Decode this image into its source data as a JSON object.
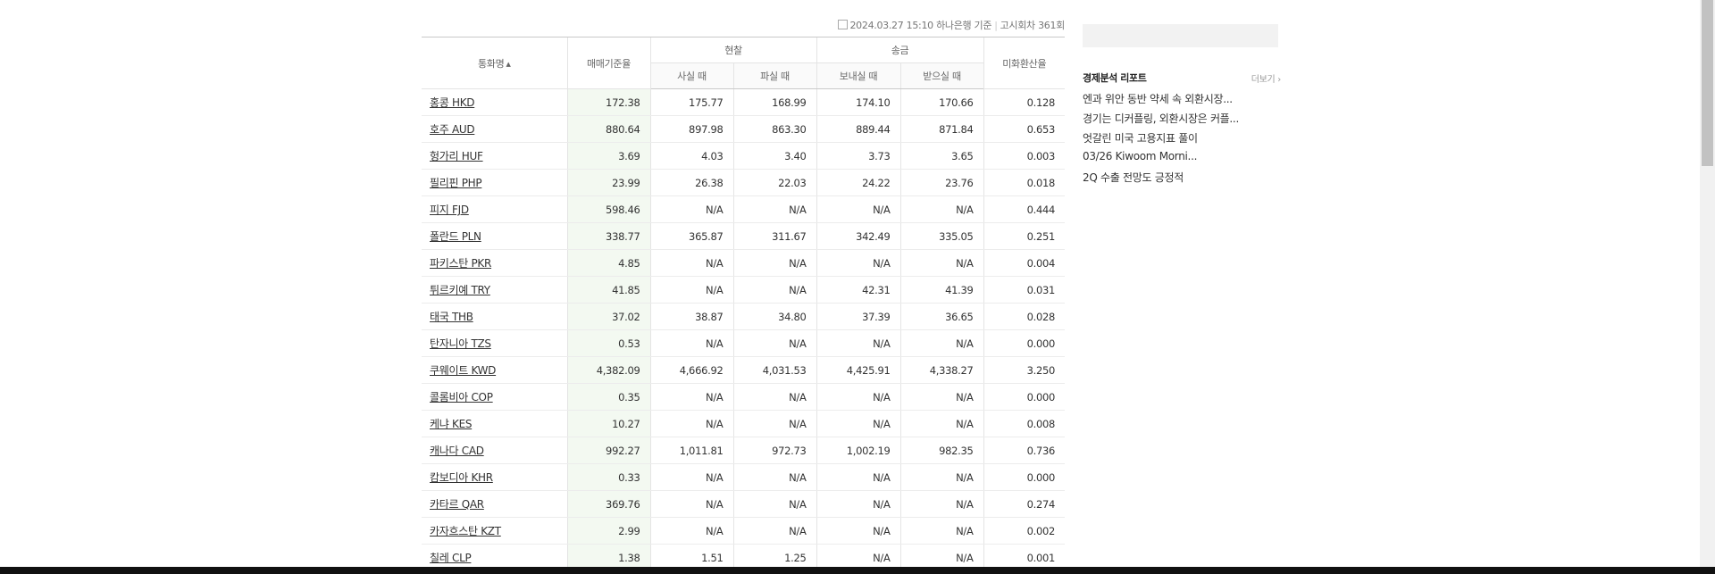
{
  "info": {
    "datetime": "2024.03.27 15:10",
    "bank": "하나은행 기준",
    "round": "고시회차 361회"
  },
  "table": {
    "headers": {
      "currency": "통화명",
      "sort_indicator": "▲",
      "base_rate": "매매기준율",
      "cash": "현찰",
      "cash_buy": "사실 때",
      "cash_sell": "파실 때",
      "remit": "송금",
      "remit_send": "보내실 때",
      "remit_receive": "받으실 때",
      "usd_conv": "미화환산율"
    },
    "rows": [
      {
        "name": "홍콩 HKD",
        "base": "172.38",
        "cash_buy": "175.77",
        "cash_sell": "168.99",
        "send": "174.10",
        "receive": "170.66",
        "usd": "0.128"
      },
      {
        "name": "호주 AUD",
        "base": "880.64",
        "cash_buy": "897.98",
        "cash_sell": "863.30",
        "send": "889.44",
        "receive": "871.84",
        "usd": "0.653"
      },
      {
        "name": "헝가리 HUF",
        "base": "3.69",
        "cash_buy": "4.03",
        "cash_sell": "3.40",
        "send": "3.73",
        "receive": "3.65",
        "usd": "0.003"
      },
      {
        "name": "필리핀 PHP",
        "base": "23.99",
        "cash_buy": "26.38",
        "cash_sell": "22.03",
        "send": "24.22",
        "receive": "23.76",
        "usd": "0.018"
      },
      {
        "name": "피지 FJD",
        "base": "598.46",
        "cash_buy": "N/A",
        "cash_sell": "N/A",
        "send": "N/A",
        "receive": "N/A",
        "usd": "0.444"
      },
      {
        "name": "폴란드 PLN",
        "base": "338.77",
        "cash_buy": "365.87",
        "cash_sell": "311.67",
        "send": "342.49",
        "receive": "335.05",
        "usd": "0.251"
      },
      {
        "name": "파키스탄 PKR",
        "base": "4.85",
        "cash_buy": "N/A",
        "cash_sell": "N/A",
        "send": "N/A",
        "receive": "N/A",
        "usd": "0.004"
      },
      {
        "name": "튀르키예 TRY",
        "base": "41.85",
        "cash_buy": "N/A",
        "cash_sell": "N/A",
        "send": "42.31",
        "receive": "41.39",
        "usd": "0.031"
      },
      {
        "name": "태국 THB",
        "base": "37.02",
        "cash_buy": "38.87",
        "cash_sell": "34.80",
        "send": "37.39",
        "receive": "36.65",
        "usd": "0.028"
      },
      {
        "name": "탄자니아 TZS",
        "base": "0.53",
        "cash_buy": "N/A",
        "cash_sell": "N/A",
        "send": "N/A",
        "receive": "N/A",
        "usd": "0.000"
      },
      {
        "name": "쿠웨이트 KWD",
        "base": "4,382.09",
        "cash_buy": "4,666.92",
        "cash_sell": "4,031.53",
        "send": "4,425.91",
        "receive": "4,338.27",
        "usd": "3.250"
      },
      {
        "name": "콜롬비아 COP",
        "base": "0.35",
        "cash_buy": "N/A",
        "cash_sell": "N/A",
        "send": "N/A",
        "receive": "N/A",
        "usd": "0.000"
      },
      {
        "name": "케냐 KES",
        "base": "10.27",
        "cash_buy": "N/A",
        "cash_sell": "N/A",
        "send": "N/A",
        "receive": "N/A",
        "usd": "0.008"
      },
      {
        "name": "캐나다 CAD",
        "base": "992.27",
        "cash_buy": "1,011.81",
        "cash_sell": "972.73",
        "send": "1,002.19",
        "receive": "982.35",
        "usd": "0.736"
      },
      {
        "name": "캄보디아 KHR",
        "base": "0.33",
        "cash_buy": "N/A",
        "cash_sell": "N/A",
        "send": "N/A",
        "receive": "N/A",
        "usd": "0.000"
      },
      {
        "name": "카타르 QAR",
        "base": "369.76",
        "cash_buy": "N/A",
        "cash_sell": "N/A",
        "send": "N/A",
        "receive": "N/A",
        "usd": "0.274"
      },
      {
        "name": "카자흐스탄 KZT",
        "base": "2.99",
        "cash_buy": "N/A",
        "cash_sell": "N/A",
        "send": "N/A",
        "receive": "N/A",
        "usd": "0.002"
      },
      {
        "name": "칠레 CLP",
        "base": "1.38",
        "cash_buy": "1.51",
        "cash_sell": "1.25",
        "send": "N/A",
        "receive": "N/A",
        "usd": "0.001"
      }
    ]
  },
  "report": {
    "title": "경제분석 리포트",
    "more": "더보기",
    "more_icon": "chevron-right-icon",
    "items": [
      "엔과 위안 동반 약세 속 외환시장...",
      "경기는 디커플링, 외환시장은 커플...",
      "엇갈린 미국 고용지표 풀이",
      "03/26 Kiwoom Morni...",
      "2Q 수출 전망도 긍정적"
    ]
  },
  "colors": {
    "base_column_bg": "#f3f9f1",
    "header_border": "#c9c9c9"
  }
}
